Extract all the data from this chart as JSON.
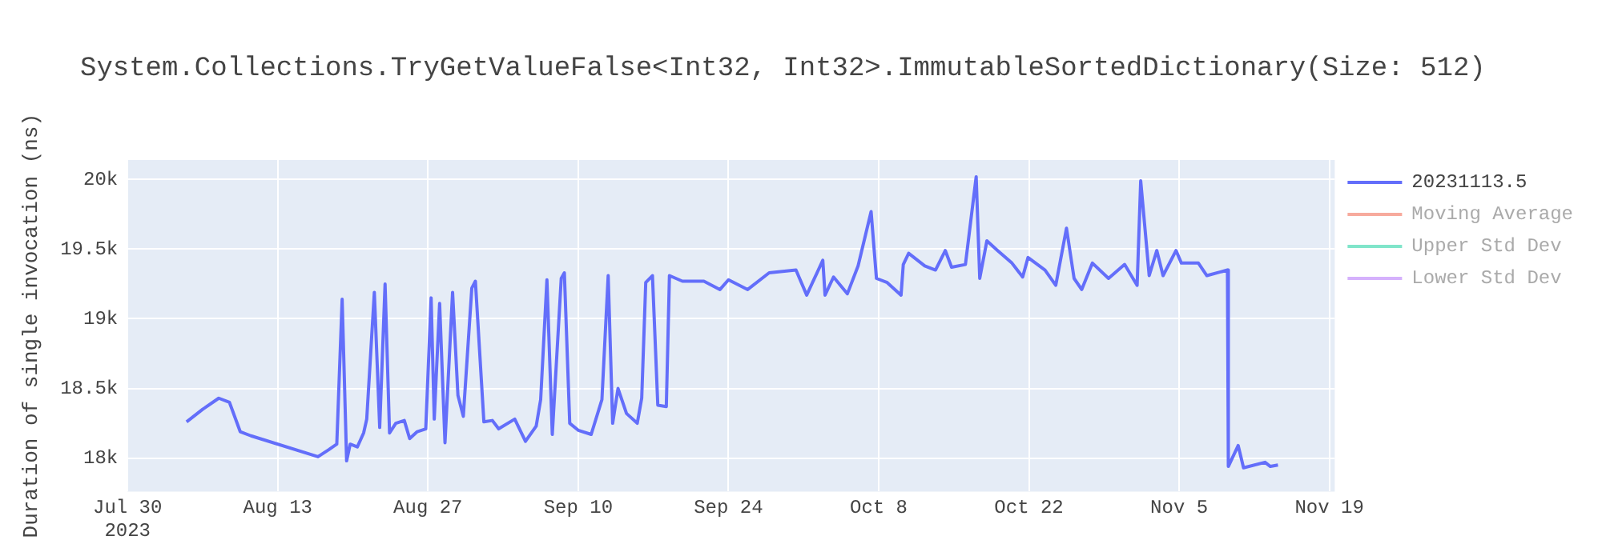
{
  "chart_data": {
    "type": "line",
    "title": "System.Collections.TryGetValueFalse<Int32, Int32>.ImmutableSortedDictionary(Size: 512)",
    "ylabel": "Duration of single invocation (ns)",
    "x": [
      "2023-08-04T12:00",
      "2023-08-05T12:00",
      "2023-08-06",
      "2023-08-07T12:00",
      "2023-08-08T12:00",
      "2023-08-09T12:00",
      "2023-08-10T12:00",
      "2023-08-16T18:00",
      "2023-08-17T18:00",
      "2023-08-18T12:00",
      "2023-08-19",
      "2023-08-19T10:00",
      "2023-08-19T18:00",
      "2023-08-20T10:00",
      "2023-08-21",
      "2023-08-21T07:00",
      "2023-08-22",
      "2023-08-22T12:00",
      "2023-08-23",
      "2023-08-23T10:00",
      "2023-08-24",
      "2023-08-24T19:00",
      "2023-08-25T07:00",
      "2023-08-26",
      "2023-08-26T19:00",
      "2023-08-27T07:00",
      "2023-08-27T14:00",
      "2023-08-28T02:00",
      "2023-08-28T14:00",
      "2023-08-29T07:00",
      "2023-08-29T19:00",
      "2023-08-30T07:00",
      "2023-08-31T02:00",
      "2023-08-31T10:00",
      "2023-09-01T05:00",
      "2023-09-02",
      "2023-09-02T14:00",
      "2023-09-04T02:00",
      "2023-09-05T02:00",
      "2023-09-06T02:00",
      "2023-09-06T12:00",
      "2023-09-07T02:00",
      "2023-09-07T14:00",
      "2023-09-08T10:00",
      "2023-09-08T17:00",
      "2023-09-09T05:00",
      "2023-09-10",
      "2023-09-11T05:00",
      "2023-09-12T05:00",
      "2023-09-12T19:00",
      "2023-09-13T05:00",
      "2023-09-13T17:00",
      "2023-09-14T12:00",
      "2023-09-15T12:00",
      "2023-09-15T22:00",
      "2023-09-16T07:00",
      "2023-09-16T22:00",
      "2023-09-17T10:00",
      "2023-09-18T05:00",
      "2023-09-18T12:00",
      "2023-09-19T17:00",
      "2023-09-21T17:00",
      "2023-09-23T05:00",
      "2023-09-24",
      "2023-09-25T19:00",
      "2023-09-27T19:00",
      "2023-09-30T07:00",
      "2023-10-01T07:00",
      "2023-10-02T19:00",
      "2023-10-03",
      "2023-10-03T19:00",
      "2023-10-05T02:00",
      "2023-10-06T02:00",
      "2023-10-07T07:00",
      "2023-10-07T19:00",
      "2023-10-08T19:00",
      "2023-10-10T02:00",
      "2023-10-10T07:00",
      "2023-10-10T19:00",
      "2023-10-12T07:00",
      "2023-10-13T07:00",
      "2023-10-14T05:00",
      "2023-10-14T19:00",
      "2023-10-16T02:00",
      "2023-10-17T02:00",
      "2023-10-17T10:00",
      "2023-10-18T02:00",
      "2023-10-19T02:00",
      "2023-10-20T10:00",
      "2023-10-21T10:00",
      "2023-10-21T22:00",
      "2023-10-23T12:00",
      "2023-10-24T12:00",
      "2023-10-25T12:00",
      "2023-10-26T05:00",
      "2023-10-26T22:00",
      "2023-10-27T22:00",
      "2023-10-29T10:00",
      "2023-10-30T22:00",
      "2023-11-01T02:00",
      "2023-11-01T10:00",
      "2023-11-02T05:00",
      "2023-11-02T22:00",
      "2023-11-03T12:00",
      "2023-11-04T17:00",
      "2023-11-05T05:00",
      "2023-11-06T19:00",
      "2023-11-07T14:00",
      "2023-11-09T12:00",
      "2023-11-09T14:00",
      "2023-11-10T12:00",
      "2023-11-11",
      "2023-11-13",
      "2023-11-13T12:00",
      "2023-11-14T05:00"
    ],
    "series": [
      {
        "name": "20231113.5",
        "color": "#636efa",
        "values": [
          18260,
          18320,
          18350,
          18430,
          18400,
          18190,
          18160,
          18010,
          18060,
          18100,
          19140,
          17980,
          18100,
          18080,
          18180,
          18280,
          19190,
          18220,
          19250,
          18180,
          18250,
          18270,
          18140,
          18190,
          18210,
          19150,
          18280,
          19110,
          18110,
          19190,
          18450,
          18300,
          19220,
          19270,
          18260,
          18270,
          18210,
          18280,
          18120,
          18230,
          18420,
          19280,
          18170,
          19290,
          19330,
          18250,
          18200,
          18170,
          18420,
          19310,
          18250,
          18500,
          18320,
          18250,
          18430,
          19260,
          19310,
          18380,
          18370,
          19310,
          19270,
          19270,
          19210,
          19280,
          19210,
          19330,
          19350,
          19170,
          19420,
          19170,
          19300,
          19180,
          19380,
          19770,
          19290,
          19260,
          19170,
          19390,
          19470,
          19380,
          19350,
          19490,
          19370,
          19390,
          20020,
          19290,
          19560,
          19490,
          19400,
          19300,
          19440,
          19350,
          19240,
          19650,
          19290,
          19210,
          19400,
          19290,
          19390,
          19240,
          19990,
          19310,
          19490,
          19310,
          19490,
          19400,
          19400,
          19310,
          19350,
          17940,
          18090,
          17930,
          17970,
          17940,
          17950
        ]
      },
      {
        "name": "Moving Average",
        "color": "#f7aa9d",
        "values": [
          null,
          null,
          null,
          null,
          null,
          null,
          null,
          null,
          null,
          null,
          null,
          null,
          null,
          null,
          null,
          null,
          null,
          null,
          null,
          null,
          null,
          null,
          null,
          null,
          null,
          null,
          null,
          null,
          null,
          null,
          null,
          null,
          null,
          null,
          null,
          null,
          null,
          null,
          null,
          null,
          null,
          null,
          null,
          null,
          null,
          null,
          null,
          null,
          null,
          null,
          null,
          null,
          null,
          null,
          null,
          null,
          null,
          null,
          null,
          null,
          null,
          null,
          null,
          null,
          null,
          null,
          null,
          null,
          null,
          null,
          null,
          null,
          null,
          null,
          null,
          null,
          null,
          null,
          null,
          null,
          null,
          null,
          null,
          null,
          null,
          null,
          null,
          null,
          null,
          null,
          null,
          null,
          null,
          null,
          null,
          null,
          null,
          null,
          null,
          null,
          null,
          null,
          null,
          null,
          null,
          null,
          null,
          null,
          null,
          null,
          null,
          null,
          null,
          null,
          null
        ]
      },
      {
        "name": "Upper Std Dev",
        "color": "#80e5ca",
        "values": [
          null,
          null,
          null,
          null,
          null,
          null,
          null,
          null,
          null,
          null,
          null,
          null,
          null,
          null,
          null,
          null,
          null,
          null,
          null,
          null,
          null,
          null,
          null,
          null,
          null,
          null,
          null,
          null,
          null,
          null,
          null,
          null,
          null,
          null,
          null,
          null,
          null,
          null,
          null,
          null,
          null,
          null,
          null,
          null,
          null,
          null,
          null,
          null,
          null,
          null,
          null,
          null,
          null,
          null,
          null,
          null,
          null,
          null,
          null,
          null,
          null,
          null,
          null,
          null,
          null,
          null,
          null,
          null,
          null,
          null,
          null,
          null,
          null,
          null,
          null,
          null,
          null,
          null,
          null,
          null,
          null,
          null,
          null,
          null,
          null,
          null,
          null,
          null,
          null,
          null,
          null,
          null,
          null,
          null,
          null,
          null,
          null,
          null,
          null,
          null,
          null,
          null,
          null,
          null,
          null,
          null,
          null,
          null,
          null,
          null,
          null,
          null,
          null,
          null,
          null
        ]
      },
      {
        "name": "Lower Std Dev",
        "color": "#d5b1fc",
        "values": [
          null,
          null,
          null,
          null,
          null,
          null,
          null,
          null,
          null,
          null,
          null,
          null,
          null,
          null,
          null,
          null,
          null,
          null,
          null,
          null,
          null,
          null,
          null,
          null,
          null,
          null,
          null,
          null,
          null,
          null,
          null,
          null,
          null,
          null,
          null,
          null,
          null,
          null,
          null,
          null,
          null,
          null,
          null,
          null,
          null,
          null,
          null,
          null,
          null,
          null,
          null,
          null,
          null,
          null,
          null,
          null,
          null,
          null,
          null,
          null,
          null,
          null,
          null,
          null,
          null,
          null,
          null,
          null,
          null,
          null,
          null,
          null,
          null,
          null,
          null,
          null,
          null,
          null,
          null,
          null,
          null,
          null,
          null,
          null,
          null,
          null,
          null,
          null,
          null,
          null,
          null,
          null,
          null,
          null,
          null,
          null,
          null,
          null,
          null,
          null,
          null,
          null,
          null,
          null,
          null,
          null,
          null,
          null,
          null,
          null,
          null,
          null,
          null,
          null,
          null
        ]
      }
    ],
    "xlim": [
      "2023-07-30",
      "2023-11-19T12:00"
    ],
    "xticks": [
      {
        "value": "2023-07-30",
        "label": "Jul 30\n2023"
      },
      {
        "value": "2023-08-13",
        "label": "Aug 13"
      },
      {
        "value": "2023-08-27",
        "label": "Aug 27"
      },
      {
        "value": "2023-09-10",
        "label": "Sep 10"
      },
      {
        "value": "2023-09-24",
        "label": "Sep 24"
      },
      {
        "value": "2023-10-08",
        "label": "Oct 8"
      },
      {
        "value": "2023-10-22",
        "label": "Oct 22"
      },
      {
        "value": "2023-11-05",
        "label": "Nov 5"
      },
      {
        "value": "2023-11-19",
        "label": "Nov 19"
      }
    ],
    "ylim": [
      17760,
      20140
    ],
    "yticks": [
      {
        "value": 18000,
        "label": "18k"
      },
      {
        "value": 18500,
        "label": "18.5k"
      },
      {
        "value": 19000,
        "label": "19k"
      },
      {
        "value": 19500,
        "label": "19.5k"
      },
      {
        "value": 20000,
        "label": "20k"
      }
    ],
    "grid": true,
    "legend": "top right",
    "marker": "none",
    "line_style": "solid"
  }
}
